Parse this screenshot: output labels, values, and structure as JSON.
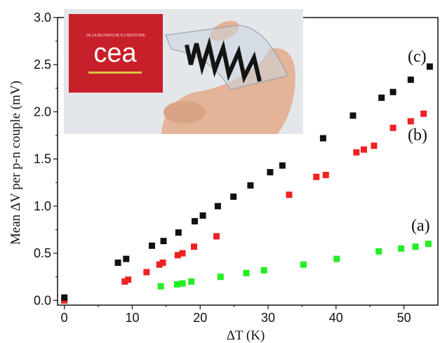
{
  "chart_data": {
    "type": "scatter",
    "title": "",
    "xlabel": "ΔT (K)",
    "ylabel": "Mean ΔV per p-n couple (mV)",
    "xlim": [
      -1,
      55
    ],
    "ylim": [
      -0.05,
      3.0
    ],
    "xticks": [
      0,
      10,
      20,
      30,
      40,
      50
    ],
    "yticks": [
      0.0,
      0.5,
      1.0,
      1.5,
      2.0,
      2.5,
      3.0
    ],
    "xtick_labels": [
      "0",
      "10",
      "20",
      "30",
      "40",
      "50"
    ],
    "ytick_labels": [
      "0.0",
      "0.5",
      "1.0",
      "1.5",
      "2.0",
      "2.5",
      "3.0"
    ],
    "grid": false,
    "series": [
      {
        "name": "(a)",
        "color": "#22ee22",
        "marker": "square",
        "points": [
          [
            0,
            0.0
          ],
          [
            14.2,
            0.15
          ],
          [
            16.6,
            0.17
          ],
          [
            17.4,
            0.18
          ],
          [
            18.7,
            0.2
          ],
          [
            23,
            0.25
          ],
          [
            26.8,
            0.29
          ],
          [
            29.4,
            0.32
          ],
          [
            35.2,
            0.38
          ],
          [
            40.1,
            0.44
          ],
          [
            46.3,
            0.52
          ],
          [
            49.6,
            0.55
          ],
          [
            51.7,
            0.57
          ],
          [
            53.6,
            0.6
          ]
        ]
      },
      {
        "name": "(b)",
        "color": "#ee2222",
        "marker": "square",
        "points": [
          [
            0,
            0.0
          ],
          [
            8.9,
            0.2
          ],
          [
            9.4,
            0.22
          ],
          [
            12.1,
            0.3
          ],
          [
            14,
            0.38
          ],
          [
            14.5,
            0.4
          ],
          [
            16.7,
            0.48
          ],
          [
            17.4,
            0.5
          ],
          [
            19.1,
            0.57
          ],
          [
            22.4,
            0.68
          ],
          [
            33.1,
            1.12
          ],
          [
            37.1,
            1.31
          ],
          [
            38.5,
            1.33
          ],
          [
            43,
            1.57
          ],
          [
            44.1,
            1.6
          ],
          [
            45.6,
            1.64
          ],
          [
            48.4,
            1.83
          ],
          [
            51,
            1.9
          ],
          [
            52.9,
            1.98
          ]
        ]
      },
      {
        "name": "(c)",
        "color": "#111111",
        "marker": "square",
        "points": [
          [
            0,
            0.03
          ],
          [
            7.9,
            0.4
          ],
          [
            9.1,
            0.44
          ],
          [
            12.9,
            0.58
          ],
          [
            14.6,
            0.63
          ],
          [
            16.8,
            0.72
          ],
          [
            19.2,
            0.84
          ],
          [
            20.4,
            0.9
          ],
          [
            22.6,
            1.0
          ],
          [
            24.9,
            1.1
          ],
          [
            27.4,
            1.22
          ],
          [
            30.3,
            1.36
          ],
          [
            32.1,
            1.43
          ],
          [
            38.1,
            1.72
          ],
          [
            42.5,
            1.96
          ],
          [
            46.7,
            2.15
          ],
          [
            48.4,
            2.21
          ],
          [
            51,
            2.34
          ],
          [
            53.8,
            2.48
          ]
        ]
      }
    ],
    "annotations": [
      "(a)",
      "(b)",
      "(c)"
    ],
    "inset": {
      "description_text": "",
      "logo_text": "cea",
      "logo_small_text": "DE LA RECHERCHE À L'INDUSTRIE"
    }
  }
}
